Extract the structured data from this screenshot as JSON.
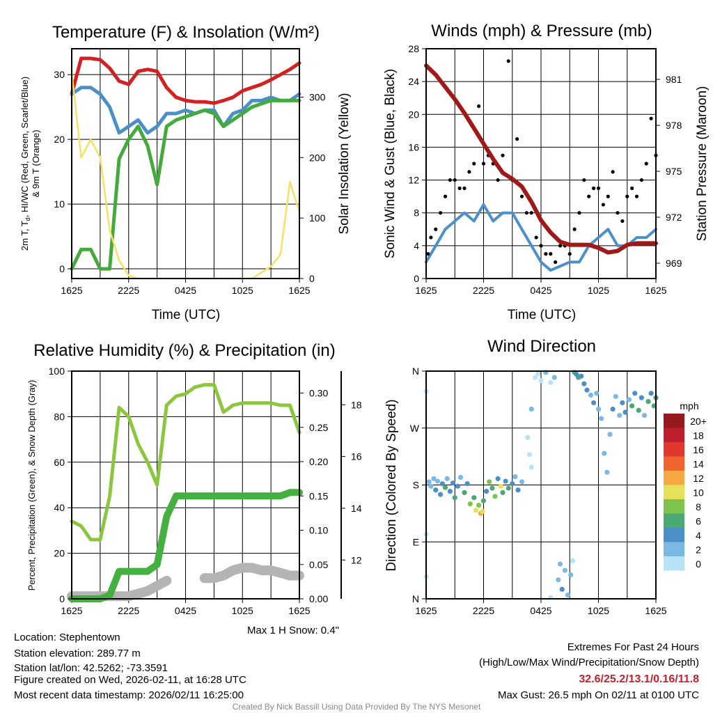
{
  "colors": {
    "temp": "#d42020",
    "windchill": "#4a8fc8",
    "dewpoint": "#44aa3c",
    "temp9m": "#f08a2a",
    "solar": "#f8e060",
    "wind": "#4a90cc",
    "gust": "#000000",
    "pressure": "#a01818",
    "rh": "#8cc63f",
    "precip": "#44b040",
    "snow": "#b4b4b4"
  },
  "time_ticks": [
    "1625",
    "2225",
    "0425",
    "1025",
    "1625"
  ],
  "footer": {
    "location": "Location: Stephentown",
    "elevation": "Station elevation: 289.77 m",
    "latlon": "Station lat/lon: 42.5262; -73.3591",
    "created": "Figure created on Wed, 2026-02-11, at 16:28 UTC",
    "recent": "Most recent data timestamp: 2026/02/11 16:25:00",
    "max_snow": "Max 1 H Snow: 0.4\"",
    "extremes_title": "Extremes For Past 24 Hours",
    "extremes_sub": "(High/Low/Max Wind/Precipitation/Snow Depth)",
    "extremes_values": "32.6/25.2/13.1/0.16/11.8",
    "max_gust": "Max Gust: 26.5 mph On 02/11 at 0100 UTC",
    "credit": "Created By Nick Bassill Using Data Provided By The NYS Mesonet"
  },
  "chart_data": [
    {
      "type": "line",
      "title": "Temperature (F) & Insolation (W/m²)",
      "xlabel": "Time (UTC)",
      "ylabel_line1_a": "2m T, T",
      "ylabel_line1_sub": "d",
      "ylabel_line1_b": ", HI/WC (Red, Green, Scarlet/Blue)",
      "ylabel_line2": "& 9m T (Orange)",
      "ylabel_right": "Solar Insolation (Yellow)",
      "ylim": [
        -1.5,
        34
      ],
      "ylim_right": [
        0,
        380
      ],
      "yticks": [
        0,
        10,
        20,
        30
      ],
      "yticks_right": [
        0,
        100,
        200,
        300
      ],
      "x_hours": [
        0,
        1,
        2,
        3,
        4,
        5,
        6,
        7,
        8,
        9,
        10,
        11,
        12,
        13,
        14,
        15,
        16,
        17,
        18,
        19,
        20,
        21,
        22,
        23,
        24
      ],
      "series": [
        {
          "name": "2m T",
          "color_key": "temp",
          "values": [
            27,
            32.5,
            32.5,
            32.3,
            31,
            29,
            28.5,
            30.5,
            30.8,
            30.5,
            28,
            26.5,
            26,
            25.8,
            25.8,
            25.6,
            26,
            26.5,
            27.5,
            28,
            28.5,
            29.2,
            30,
            30.8,
            31.8
          ]
        },
        {
          "name": "HI/WC",
          "color_key": "windchill",
          "values": [
            27,
            28,
            28,
            27,
            25,
            21,
            22,
            23,
            21,
            22,
            24,
            24,
            24.5,
            24,
            24.5,
            24.5,
            22,
            24,
            24.5,
            26,
            26,
            26.5,
            26,
            26,
            27
          ]
        },
        {
          "name": "Td",
          "color_key": "dewpoint",
          "values": [
            0,
            3,
            3,
            0,
            0,
            17,
            20,
            22,
            19,
            13,
            22,
            23,
            23.5,
            24,
            24.5,
            24,
            22,
            23,
            24,
            25,
            25.5,
            26,
            26,
            26,
            26
          ]
        },
        {
          "name": "Solar",
          "color_key": "solar",
          "axis": "right",
          "values": [
            340,
            200,
            230,
            200,
            80,
            30,
            5,
            0,
            0,
            0,
            0,
            0,
            0,
            0,
            0,
            0,
            0,
            0,
            0,
            0,
            10,
            20,
            40,
            160,
            110
          ]
        }
      ]
    },
    {
      "type": "line",
      "title": "Winds (mph) & Pressure (mb)",
      "xlabel": "Time (UTC)",
      "ylabel": "Sonic Wind & Gust (Blue, Black)",
      "ylabel_right": "Station Pressure (Maroon)",
      "ylim": [
        0,
        28
      ],
      "ylim_right": [
        968,
        983
      ],
      "yticks": [
        0,
        4,
        8,
        12,
        16,
        20,
        24,
        28
      ],
      "yticks_right": [
        969,
        972,
        975,
        978,
        981
      ],
      "x_hours": [
        0,
        1,
        2,
        3,
        4,
        5,
        6,
        7,
        8,
        9,
        10,
        11,
        12,
        13,
        14,
        15,
        16,
        17,
        18,
        19,
        20,
        21,
        22,
        23,
        24
      ],
      "wind": [
        2,
        4,
        6,
        7,
        8,
        7,
        9,
        7,
        8,
        8,
        6,
        4,
        2,
        1,
        1.5,
        2,
        2,
        4,
        5,
        6,
        4,
        4,
        5,
        5,
        6
      ],
      "pressure": [
        981.9,
        981.3,
        980.5,
        979.7,
        978.8,
        977.8,
        976.8,
        975.8,
        974.9,
        974.5,
        974.0,
        973.0,
        971.8,
        971.0,
        970.4,
        970.2,
        970.2,
        970.2,
        970.0,
        969.7,
        969.8,
        970.2,
        970.3,
        970.3,
        970.3
      ],
      "gust_points": [
        [
          0.2,
          3
        ],
        [
          0.5,
          5
        ],
        [
          1,
          6
        ],
        [
          1.5,
          8
        ],
        [
          2,
          10
        ],
        [
          2.5,
          12
        ],
        [
          3,
          12
        ],
        [
          3.5,
          11
        ],
        [
          4,
          11
        ],
        [
          4.5,
          13
        ],
        [
          5,
          14
        ],
        [
          5.5,
          21
        ],
        [
          6,
          14
        ],
        [
          6.5,
          15
        ],
        [
          7,
          14
        ],
        [
          7.5,
          12
        ],
        [
          8,
          15
        ],
        [
          8.6,
          26.5
        ],
        [
          9,
          12
        ],
        [
          9.5,
          17
        ],
        [
          10,
          10
        ],
        [
          10.5,
          8
        ],
        [
          11,
          8
        ],
        [
          11.5,
          5
        ],
        [
          12,
          4
        ],
        [
          12.5,
          3
        ],
        [
          13,
          3
        ],
        [
          13.5,
          2
        ],
        [
          14,
          4
        ],
        [
          14.5,
          4
        ],
        [
          15,
          3
        ],
        [
          15.5,
          6
        ],
        [
          16,
          8
        ],
        [
          16.5,
          12
        ],
        [
          17,
          10
        ],
        [
          17.5,
          11
        ],
        [
          18,
          11
        ],
        [
          18.5,
          9
        ],
        [
          19,
          10
        ],
        [
          19.5,
          13
        ],
        [
          20,
          8
        ],
        [
          20.5,
          7
        ],
        [
          21,
          10
        ],
        [
          21.5,
          11
        ],
        [
          22,
          10
        ],
        [
          22.5,
          12
        ],
        [
          23,
          14
        ],
        [
          23.5,
          19.5
        ],
        [
          24,
          15
        ]
      ]
    },
    {
      "type": "line",
      "title": "Relative Humidity (%) & Precipitation (in)",
      "ylabel": "Percent, Precipitation (Green), & Snow Depth (Gray)",
      "ylim": [
        0,
        100
      ],
      "ylim_precip": [
        0,
        0.332
      ],
      "ylim_snow": [
        10.5,
        19.3
      ],
      "yticks": [
        0,
        20,
        40,
        60,
        80,
        100
      ],
      "yticks_precip": [
        "0.00",
        "0.05",
        "0.10",
        "0.15",
        "0.20",
        "0.25",
        "0.30"
      ],
      "yticks_snow": [
        12,
        14,
        16,
        18
      ],
      "x_hours": [
        0,
        1,
        2,
        3,
        4,
        5,
        6,
        7,
        8,
        9,
        10,
        11,
        12,
        13,
        14,
        15,
        16,
        17,
        18,
        19,
        20,
        21,
        22,
        23,
        24
      ],
      "rh": [
        34,
        32,
        26,
        26,
        45,
        84,
        80,
        68,
        60,
        50,
        85,
        89,
        90,
        93,
        94,
        94,
        82,
        85,
        86,
        86,
        86,
        86,
        85,
        85,
        73
      ],
      "precip": [
        0,
        0,
        0,
        0,
        0.005,
        0.04,
        0.04,
        0.04,
        0.04,
        0.05,
        0.12,
        0.15,
        0.15,
        0.15,
        0.15,
        0.15,
        0.15,
        0.15,
        0.15,
        0.15,
        0.15,
        0.15,
        0.15,
        0.155,
        0.155
      ],
      "snow_depth": [
        10.6,
        10.6,
        10.6,
        10.6,
        10.6,
        10.6,
        10.6,
        10.7,
        10.8,
        11.0,
        11.2,
        null,
        null,
        null,
        11.3,
        11.3,
        11.4,
        11.6,
        11.7,
        11.7,
        11.6,
        11.6,
        11.5,
        11.4,
        11.4
      ]
    },
    {
      "type": "scatter",
      "title": "Wind Direction",
      "ylabel": "Direction (Colored By Speed)",
      "ytick_labels": [
        "N",
        "E",
        "S",
        "W",
        "N"
      ],
      "ytick_degrees": [
        0,
        90,
        180,
        270,
        360
      ],
      "colorbar_title": "mph",
      "colorbar": [
        {
          "label": "0",
          "color": "#b8e2f8"
        },
        {
          "label": "2",
          "color": "#7bb9e4"
        },
        {
          "label": "4",
          "color": "#4a8fc6"
        },
        {
          "label": "6",
          "color": "#4aa872"
        },
        {
          "label": "8",
          "color": "#7ec34d"
        },
        {
          "label": "10",
          "color": "#e6e15a"
        },
        {
          "label": "12",
          "color": "#f6a844"
        },
        {
          "label": "14",
          "color": "#f06430"
        },
        {
          "label": "16",
          "color": "#e0382e"
        },
        {
          "label": "18",
          "color": "#be1e2d"
        },
        {
          "label": "20+",
          "color": "#961a1d"
        }
      ],
      "points": [
        [
          0,
          328,
          1
        ],
        [
          0,
          102,
          1
        ],
        [
          0,
          35,
          1
        ],
        [
          0.3,
          185,
          3
        ],
        [
          0.5,
          178,
          2
        ],
        [
          0.8,
          190,
          3
        ],
        [
          1,
          172,
          4
        ],
        [
          1.2,
          186,
          2
        ],
        [
          1.5,
          165,
          5
        ],
        [
          1.7,
          182,
          4
        ],
        [
          2,
          176,
          6
        ],
        [
          2.2,
          190,
          3
        ],
        [
          2.5,
          170,
          5
        ],
        [
          2.8,
          183,
          4
        ],
        [
          3,
          160,
          7
        ],
        [
          3.3,
          178,
          5
        ],
        [
          3.6,
          192,
          3
        ],
        [
          4,
          168,
          6
        ],
        [
          4.3,
          182,
          4
        ],
        [
          4.6,
          150,
          8
        ],
        [
          5,
          160,
          6
        ],
        [
          5.2,
          140,
          10
        ],
        [
          5.5,
          148,
          9
        ],
        [
          5.7,
          135,
          12
        ],
        [
          5.9,
          138,
          11
        ],
        [
          6,
          155,
          7
        ],
        [
          6.3,
          170,
          5
        ],
        [
          6.6,
          185,
          8
        ],
        [
          6.9,
          175,
          6
        ],
        [
          7.2,
          162,
          9
        ],
        [
          7.5,
          190,
          4
        ],
        [
          7.8,
          178,
          10
        ],
        [
          8,
          168,
          6
        ],
        [
          8.3,
          186,
          5
        ],
        [
          8.6,
          175,
          7
        ],
        [
          9,
          182,
          4
        ],
        [
          9.3,
          193,
          3
        ],
        [
          9.6,
          172,
          5
        ],
        [
          10,
          185,
          3
        ],
        [
          10.6,
          255,
          1
        ],
        [
          10.8,
          228,
          1
        ],
        [
          11,
          208,
          1
        ],
        [
          11,
          300,
          2
        ],
        [
          11.4,
          350,
          1
        ],
        [
          11.7,
          356,
          1
        ],
        [
          12,
          345,
          1
        ],
        [
          12.5,
          358,
          2
        ],
        [
          13,
          2,
          1
        ],
        [
          13,
          342,
          1
        ],
        [
          13.4,
          350,
          2
        ],
        [
          13.8,
          30,
          3
        ],
        [
          14,
          55,
          3
        ],
        [
          14.2,
          15,
          4
        ],
        [
          14.5,
          45,
          2
        ],
        [
          14.8,
          6,
          3
        ],
        [
          15.1,
          38,
          2
        ],
        [
          15.3,
          60,
          1
        ],
        [
          15.5,
          358,
          6
        ],
        [
          15.7,
          355,
          5
        ],
        [
          15.9,
          350,
          7
        ],
        [
          16.2,
          352,
          4
        ],
        [
          16.5,
          340,
          5
        ],
        [
          16.8,
          330,
          4
        ],
        [
          17.2,
          322,
          3
        ],
        [
          17.5,
          310,
          4
        ],
        [
          17.8,
          325,
          3
        ],
        [
          18,
          300,
          2
        ],
        [
          18.3,
          285,
          2
        ],
        [
          18.6,
          230,
          2
        ],
        [
          18.9,
          200,
          2
        ],
        [
          19.2,
          260,
          3
        ],
        [
          19.5,
          300,
          4
        ],
        [
          19.8,
          320,
          3
        ],
        [
          20.2,
          290,
          2
        ],
        [
          20.5,
          310,
          5
        ],
        [
          20.8,
          295,
          4
        ],
        [
          21.2,
          315,
          3
        ],
        [
          21.5,
          305,
          6
        ],
        [
          21.8,
          325,
          4
        ],
        [
          22.2,
          298,
          7
        ],
        [
          22.5,
          318,
          5
        ],
        [
          22.8,
          290,
          3
        ],
        [
          23.2,
          312,
          6
        ],
        [
          23.5,
          325,
          4
        ],
        [
          23.8,
          305,
          6
        ],
        [
          24,
          318,
          7
        ]
      ]
    }
  ]
}
